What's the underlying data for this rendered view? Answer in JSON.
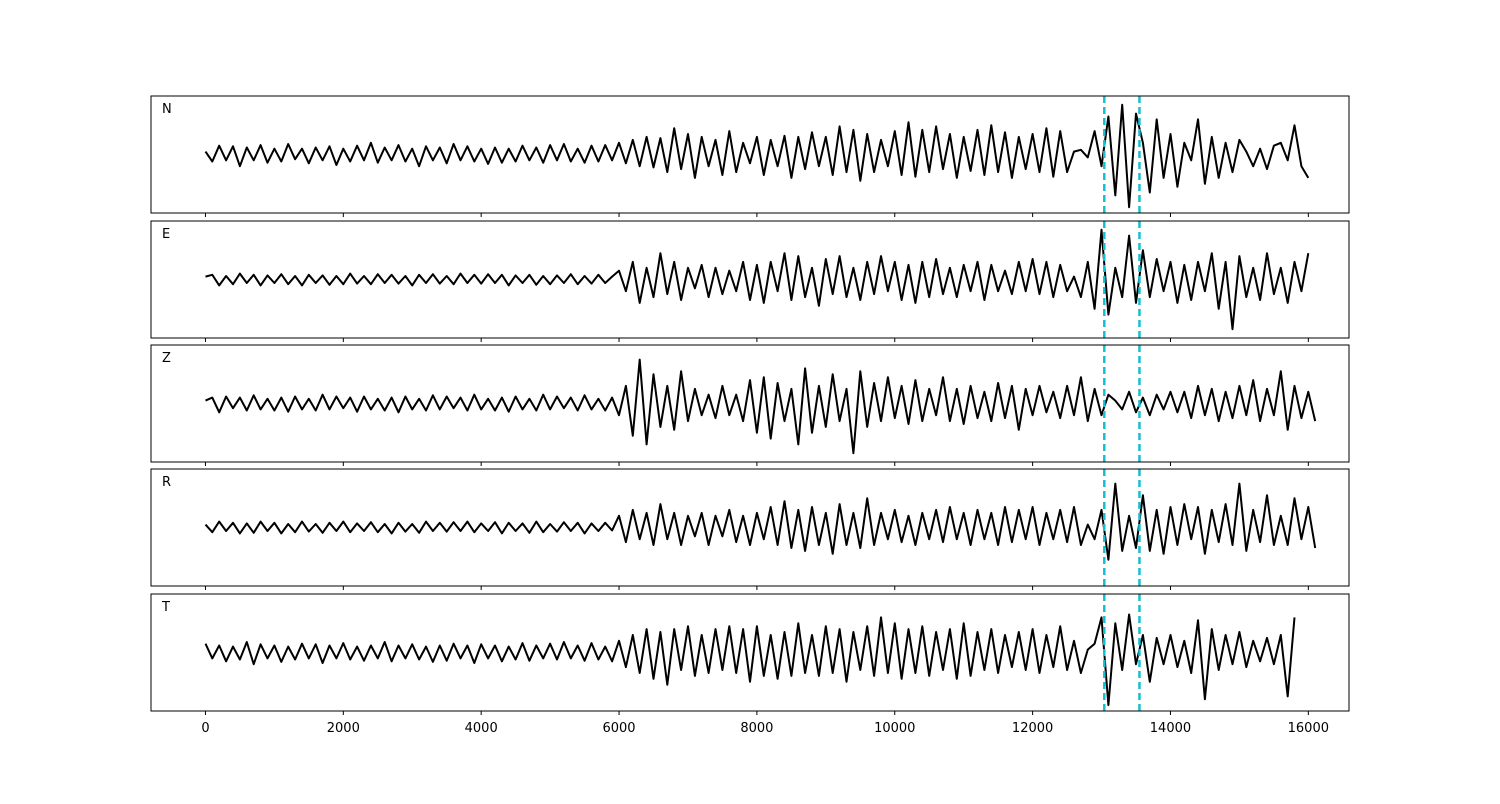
{
  "chart_data": {
    "type": "line",
    "xlim": [
      -790,
      16590
    ],
    "ylim": [
      -1,
      1
    ],
    "x_start": 0,
    "x_step": 100,
    "xticks": [
      0,
      2000,
      4000,
      6000,
      8000,
      10000,
      12000,
      14000,
      16000
    ],
    "xtick_labels": [
      "0",
      "2000",
      "4000",
      "6000",
      "8000",
      "10000",
      "12000",
      "14000",
      "16000"
    ],
    "line_color": "#000000",
    "marker_color": "#17becf",
    "vertical_markers": [
      13040,
      13550
    ],
    "grid": false,
    "panels": [
      {
        "label": "N",
        "values": [
          0.05,
          -0.12,
          0.15,
          -0.1,
          0.14,
          -0.2,
          0.12,
          -0.1,
          0.16,
          -0.14,
          0.1,
          -0.12,
          0.18,
          -0.08,
          0.1,
          -0.15,
          0.12,
          -0.1,
          0.14,
          -0.18,
          0.1,
          -0.12,
          0.15,
          -0.1,
          0.2,
          -0.14,
          0.12,
          -0.1,
          0.16,
          -0.12,
          0.1,
          -0.2,
          0.14,
          -0.1,
          0.12,
          -0.15,
          0.18,
          -0.1,
          0.14,
          -0.12,
          0.1,
          -0.16,
          0.12,
          -0.14,
          0.1,
          -0.12,
          0.15,
          -0.1,
          0.12,
          -0.14,
          0.16,
          -0.1,
          0.18,
          -0.12,
          0.1,
          -0.14,
          0.15,
          -0.12,
          0.16,
          -0.1,
          0.2,
          -0.15,
          0.25,
          -0.2,
          0.3,
          -0.22,
          0.28,
          -0.3,
          0.45,
          -0.25,
          0.35,
          -0.4,
          0.3,
          -0.2,
          0.25,
          -0.35,
          0.4,
          -0.3,
          0.2,
          -0.15,
          0.3,
          -0.35,
          0.25,
          -0.2,
          0.32,
          -0.4,
          0.3,
          -0.25,
          0.38,
          -0.2,
          0.3,
          -0.35,
          0.48,
          -0.3,
          0.42,
          -0.45,
          0.35,
          -0.3,
          0.25,
          -0.2,
          0.4,
          -0.35,
          0.55,
          -0.38,
          0.42,
          -0.3,
          0.48,
          -0.25,
          0.35,
          -0.4,
          0.3,
          -0.28,
          0.42,
          -0.35,
          0.5,
          -0.3,
          0.38,
          -0.4,
          0.3,
          -0.25,
          0.35,
          -0.3,
          0.45,
          -0.38,
          0.4,
          -0.3,
          0.05,
          0.08,
          -0.05,
          0.4,
          -0.2,
          0.65,
          -0.7,
          0.85,
          -0.9,
          0.7,
          0.2,
          -0.65,
          0.6,
          -0.4,
          0.35,
          -0.55,
          0.2,
          -0.1,
          0.6,
          -0.5,
          0.3,
          -0.4,
          0.2,
          -0.3,
          0.25,
          0.05,
          -0.2,
          0.1,
          -0.25,
          0.15,
          0.2,
          -0.1,
          0.5,
          -0.2,
          -0.4
        ]
      },
      {
        "label": "E",
        "values": [
          0.05,
          0.08,
          -0.1,
          0.06,
          -0.08,
          0.1,
          -0.06,
          0.08,
          -0.1,
          0.07,
          -0.06,
          0.09,
          -0.08,
          0.06,
          -0.1,
          0.08,
          -0.06,
          0.07,
          -0.09,
          0.06,
          -0.08,
          0.1,
          -0.07,
          0.06,
          -0.08,
          0.09,
          -0.06,
          0.08,
          -0.07,
          0.06,
          -0.1,
          0.08,
          -0.06,
          0.09,
          -0.07,
          0.06,
          -0.08,
          0.1,
          -0.06,
          0.08,
          -0.07,
          0.09,
          -0.06,
          0.08,
          -0.1,
          0.07,
          -0.06,
          0.08,
          -0.09,
          0.06,
          -0.08,
          0.07,
          -0.06,
          0.09,
          -0.08,
          0.06,
          -0.07,
          0.08,
          -0.06,
          0.05,
          0.15,
          -0.2,
          0.3,
          -0.4,
          0.2,
          -0.3,
          0.45,
          -0.25,
          0.3,
          -0.35,
          0.2,
          -0.15,
          0.25,
          -0.3,
          0.2,
          -0.25,
          0.15,
          -0.2,
          0.3,
          -0.35,
          0.25,
          -0.4,
          0.3,
          -0.2,
          0.45,
          -0.35,
          0.4,
          -0.3,
          0.2,
          -0.45,
          0.35,
          -0.25,
          0.4,
          -0.3,
          0.2,
          -0.35,
          0.3,
          -0.25,
          0.4,
          -0.2,
          0.3,
          -0.35,
          0.25,
          -0.4,
          0.3,
          -0.3,
          0.35,
          -0.25,
          0.2,
          -0.3,
          0.25,
          -0.2,
          0.3,
          -0.35,
          0.25,
          -0.2,
          0.15,
          -0.25,
          0.3,
          -0.2,
          0.35,
          -0.25,
          0.3,
          -0.3,
          0.25,
          -0.2,
          0.05,
          -0.3,
          0.3,
          -0.5,
          0.85,
          -0.6,
          0.2,
          -0.3,
          0.75,
          -0.4,
          0.5,
          -0.3,
          0.35,
          -0.2,
          0.3,
          -0.4,
          0.25,
          -0.35,
          0.3,
          -0.2,
          0.45,
          -0.5,
          0.3,
          -0.85,
          0.4,
          -0.3,
          0.2,
          -0.35,
          0.45,
          -0.25,
          0.2,
          -0.4,
          0.3,
          -0.2,
          0.45
        ]
      },
      {
        "label": "Z",
        "values": [
          0.05,
          0.1,
          -0.15,
          0.12,
          -0.08,
          0.1,
          -0.12,
          0.14,
          -0.1,
          0.08,
          -0.12,
          0.1,
          -0.14,
          0.12,
          -0.1,
          0.08,
          -0.12,
          0.15,
          -0.1,
          0.12,
          -0.08,
          0.1,
          -0.14,
          0.12,
          -0.1,
          0.08,
          -0.12,
          0.1,
          -0.15,
          0.12,
          -0.1,
          0.08,
          -0.12,
          0.14,
          -0.1,
          0.12,
          -0.08,
          0.1,
          -0.12,
          0.15,
          -0.1,
          0.08,
          -0.12,
          0.1,
          -0.14,
          0.12,
          -0.1,
          0.08,
          -0.12,
          0.15,
          -0.1,
          0.12,
          -0.08,
          0.1,
          -0.12,
          0.14,
          -0.1,
          0.08,
          -0.12,
          0.1,
          -0.2,
          0.3,
          -0.55,
          0.75,
          -0.7,
          0.5,
          -0.4,
          0.3,
          -0.45,
          0.55,
          -0.3,
          0.25,
          -0.2,
          0.15,
          -0.25,
          0.3,
          -0.2,
          0.15,
          -0.3,
          0.4,
          -0.5,
          0.45,
          -0.6,
          0.35,
          -0.3,
          0.25,
          -0.7,
          0.6,
          -0.5,
          0.3,
          -0.4,
          0.5,
          -0.3,
          0.25,
          -0.85,
          0.55,
          -0.4,
          0.35,
          -0.3,
          0.45,
          -0.25,
          0.3,
          -0.35,
          0.4,
          -0.3,
          0.25,
          -0.2,
          0.45,
          -0.3,
          0.25,
          -0.35,
          0.3,
          -0.25,
          0.2,
          -0.3,
          0.35,
          -0.25,
          0.3,
          -0.45,
          0.25,
          -0.2,
          0.3,
          -0.15,
          0.2,
          -0.25,
          0.3,
          -0.2,
          0.45,
          -0.3,
          0.25,
          -0.2,
          0.15,
          0.05,
          -0.1,
          0.2,
          -0.15,
          0.1,
          -0.2,
          0.15,
          -0.1,
          0.2,
          -0.15,
          0.2,
          -0.25,
          0.3,
          -0.2,
          0.25,
          -0.3,
          0.2,
          -0.25,
          0.3,
          -0.2,
          0.4,
          -0.3,
          0.25,
          -0.2,
          0.55,
          -0.45,
          0.3,
          -0.25,
          0.2,
          -0.3
        ]
      },
      {
        "label": "R",
        "values": [
          0.05,
          -0.08,
          0.1,
          -0.06,
          0.08,
          -0.1,
          0.07,
          -0.09,
          0.1,
          -0.06,
          0.08,
          -0.1,
          0.06,
          -0.08,
          0.1,
          -0.07,
          0.06,
          -0.09,
          0.08,
          -0.06,
          0.1,
          -0.08,
          0.07,
          -0.06,
          0.09,
          -0.08,
          0.06,
          -0.1,
          0.08,
          -0.07,
          0.06,
          -0.09,
          0.1,
          -0.06,
          0.08,
          -0.07,
          0.09,
          -0.06,
          0.1,
          -0.08,
          0.07,
          -0.06,
          0.09,
          -0.1,
          0.08,
          -0.06,
          0.07,
          -0.09,
          0.1,
          -0.08,
          0.06,
          -0.07,
          0.09,
          -0.06,
          0.08,
          -0.1,
          0.07,
          -0.06,
          0.08,
          -0.05,
          0.2,
          -0.25,
          0.3,
          -0.2,
          0.25,
          -0.3,
          0.4,
          -0.2,
          0.25,
          -0.3,
          0.2,
          -0.15,
          0.25,
          -0.3,
          0.2,
          -0.15,
          0.3,
          -0.25,
          0.2,
          -0.3,
          0.25,
          -0.2,
          0.35,
          -0.3,
          0.45,
          -0.35,
          0.3,
          -0.4,
          0.35,
          -0.3,
          0.25,
          -0.45,
          0.4,
          -0.3,
          0.25,
          -0.35,
          0.5,
          -0.3,
          0.25,
          -0.2,
          0.3,
          -0.25,
          0.2,
          -0.3,
          0.25,
          -0.2,
          0.3,
          -0.25,
          0.35,
          -0.2,
          0.25,
          -0.3,
          0.3,
          -0.2,
          0.25,
          -0.3,
          0.35,
          -0.25,
          0.3,
          -0.2,
          0.35,
          -0.3,
          0.25,
          -0.2,
          0.3,
          -0.25,
          0.35,
          -0.3,
          0.05,
          -0.2,
          0.3,
          -0.55,
          0.75,
          -0.4,
          0.2,
          -0.35,
          0.55,
          -0.4,
          0.3,
          -0.45,
          0.35,
          -0.3,
          0.4,
          -0.2,
          0.35,
          -0.45,
          0.3,
          -0.25,
          0.4,
          -0.3,
          0.75,
          -0.4,
          0.3,
          -0.25,
          0.55,
          -0.3,
          0.2,
          -0.3,
          0.5,
          -0.2,
          0.35,
          -0.35
        ]
      },
      {
        "label": "T",
        "values": [
          0.15,
          -0.1,
          0.12,
          -0.15,
          0.1,
          -0.12,
          0.18,
          -0.2,
          0.14,
          -0.1,
          0.12,
          -0.16,
          0.1,
          -0.12,
          0.15,
          -0.1,
          0.14,
          -0.18,
          0.12,
          -0.1,
          0.16,
          -0.12,
          0.1,
          -0.14,
          0.12,
          -0.1,
          0.18,
          -0.15,
          0.12,
          -0.1,
          0.14,
          -0.12,
          0.1,
          -0.16,
          0.12,
          -0.14,
          0.15,
          -0.1,
          0.12,
          -0.18,
          0.14,
          -0.1,
          0.12,
          -0.15,
          0.1,
          -0.12,
          0.16,
          -0.14,
          0.12,
          -0.1,
          0.15,
          -0.12,
          0.18,
          -0.1,
          0.12,
          -0.14,
          0.16,
          -0.12,
          0.1,
          -0.15,
          0.2,
          -0.25,
          0.3,
          -0.35,
          0.4,
          -0.45,
          0.35,
          -0.55,
          0.4,
          -0.3,
          0.45,
          -0.4,
          0.3,
          -0.35,
          0.4,
          -0.3,
          0.45,
          -0.35,
          0.4,
          -0.5,
          0.45,
          -0.4,
          0.3,
          -0.45,
          0.35,
          -0.4,
          0.5,
          -0.35,
          0.3,
          -0.4,
          0.45,
          -0.35,
          0.4,
          -0.5,
          0.35,
          -0.3,
          0.45,
          -0.4,
          0.6,
          -0.35,
          0.5,
          -0.45,
          0.4,
          -0.35,
          0.45,
          -0.4,
          0.35,
          -0.3,
          0.4,
          -0.45,
          0.5,
          -0.4,
          0.35,
          -0.3,
          0.4,
          -0.35,
          0.3,
          -0.25,
          0.35,
          -0.3,
          0.4,
          -0.35,
          0.3,
          -0.25,
          0.45,
          -0.3,
          0.2,
          -0.35,
          0.05,
          0.15,
          0.6,
          -0.9,
          0.5,
          -0.3,
          0.65,
          -0.2,
          0.3,
          -0.5,
          0.25,
          -0.2,
          0.3,
          -0.25,
          0.2,
          -0.35,
          0.55,
          -0.8,
          0.4,
          -0.3,
          0.3,
          -0.2,
          0.35,
          -0.25,
          0.2,
          -0.15,
          0.25,
          -0.2,
          0.3,
          -0.75,
          0.6
        ]
      }
    ]
  }
}
